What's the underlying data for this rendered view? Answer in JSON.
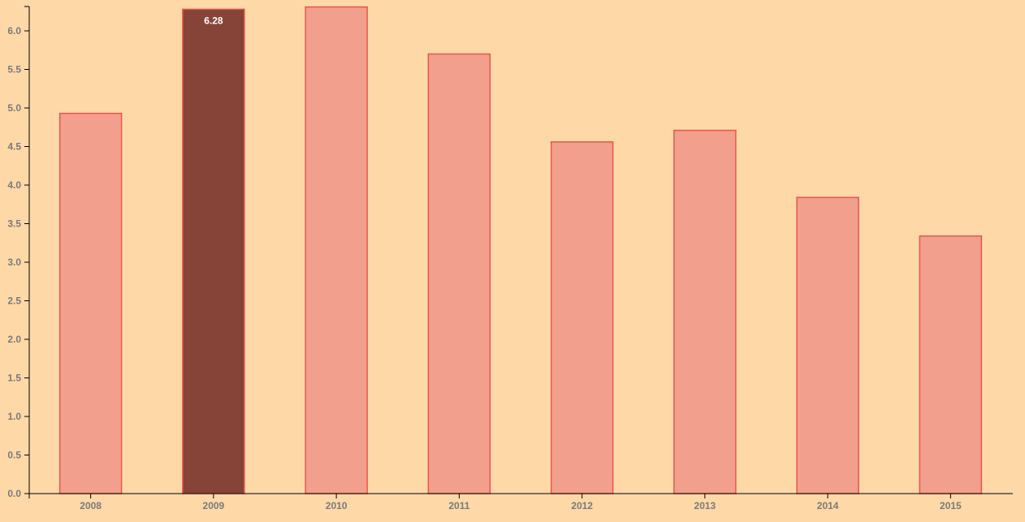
{
  "colors": {
    "background": "#ffd8a8",
    "bar_fill": "#f29f8d",
    "bar_stroke": "#e8574a",
    "highlight_fill": "#864438",
    "axis": "#000000",
    "tick_text": "#7a7a7a",
    "label_text": "#ffffff"
  },
  "chart_data": {
    "type": "bar",
    "categories": [
      "2008",
      "2009",
      "2010",
      "2011",
      "2012",
      "2013",
      "2014",
      "2015"
    ],
    "values": [
      4.93,
      6.28,
      6.31,
      5.7,
      4.56,
      4.71,
      3.84,
      3.34
    ],
    "highlighted_index": 1,
    "data_labels": [
      {
        "index": 1,
        "text": "6.28"
      }
    ],
    "ylim": [
      0,
      6.3
    ],
    "yticks": [
      0.0,
      0.5,
      1.0,
      1.5,
      2.0,
      2.5,
      3.0,
      3.5,
      4.0,
      4.5,
      5.0,
      5.5,
      6.0
    ],
    "ytick_labels": [
      "0.0",
      "0.5",
      "1.0",
      "1.5",
      "2.0",
      "2.5",
      "3.0",
      "3.5",
      "4.0",
      "4.5",
      "5.0",
      "5.5",
      "6.0"
    ],
    "title": "",
    "xlabel": "",
    "ylabel": "",
    "grid": false,
    "legend": "none"
  }
}
